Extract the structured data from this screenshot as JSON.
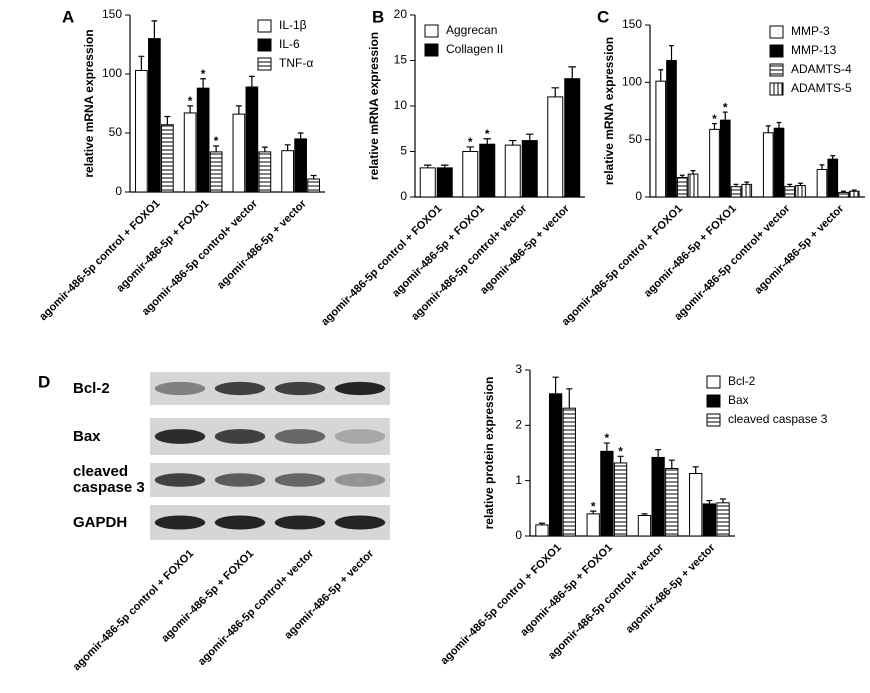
{
  "chart_data": [
    {
      "type": "bar",
      "panel": "A",
      "y_label": "relative mRNA expression",
      "categories": [
        "agomir-486-5p control + FOXO1",
        "agomir-486-5p + FOXO1",
        "agomir-486-5p control+ vector",
        "agomir-486-5p + vector"
      ],
      "ylim": [
        0,
        150
      ],
      "yticks": [
        0,
        50,
        100,
        150
      ],
      "series": [
        {
          "name": "IL-1β",
          "color": "#ffffff",
          "values": [
            103,
            67,
            66,
            35
          ],
          "errors": [
            12,
            6,
            7,
            5
          ],
          "stars": [
            null,
            "*",
            null,
            null
          ]
        },
        {
          "name": "IL-6",
          "color": "#000000",
          "values": [
            130,
            88,
            89,
            45
          ],
          "errors": [
            15,
            8,
            9,
            5
          ],
          "stars": [
            null,
            "*",
            null,
            null
          ]
        },
        {
          "name": "TNF-α",
          "color": "#ffffff",
          "hatch": "horizontal",
          "values": [
            57,
            34,
            34,
            11
          ],
          "errors": [
            7,
            5,
            4,
            3
          ],
          "stars": [
            null,
            "*",
            null,
            null
          ]
        }
      ]
    },
    {
      "type": "bar",
      "panel": "B",
      "y_label": "relative mRNA expression",
      "categories": [
        "agomir-486-5p control + FOXO1",
        "agomir-486-5p + FOXO1",
        "agomir-486-5p control+ vector",
        "agomir-486-5p + vector"
      ],
      "ylim": [
        0,
        20
      ],
      "yticks": [
        0,
        5,
        10,
        15,
        20
      ],
      "series": [
        {
          "name": "Aggrecan",
          "color": "#ffffff",
          "values": [
            3.2,
            5.0,
            5.7,
            11.0
          ],
          "errors": [
            0.3,
            0.5,
            0.5,
            1.0
          ],
          "stars": [
            null,
            "*",
            null,
            null
          ]
        },
        {
          "name": "Collagen II",
          "color": "#000000",
          "values": [
            3.2,
            5.8,
            6.2,
            13.0
          ],
          "errors": [
            0.3,
            0.6,
            0.7,
            1.3
          ],
          "stars": [
            null,
            "*",
            null,
            null
          ]
        }
      ]
    },
    {
      "type": "bar",
      "panel": "C",
      "y_label": "relative mRNA expression",
      "categories": [
        "agomir-486-5p control + FOXO1",
        "agomir-486-5p + FOXO1",
        "agomir-486-5p control+ vector",
        "agomir-486-5p + vector"
      ],
      "ylim": [
        0,
        150
      ],
      "yticks": [
        0,
        50,
        100,
        150
      ],
      "series": [
        {
          "name": "MMP-3",
          "color": "#ffffff",
          "values": [
            101,
            59,
            56,
            24
          ],
          "errors": [
            10,
            5,
            6,
            4
          ],
          "stars": [
            null,
            "*",
            null,
            null
          ]
        },
        {
          "name": "MMP-13",
          "color": "#000000",
          "values": [
            119,
            67,
            60,
            33
          ],
          "errors": [
            13,
            7,
            5,
            3
          ],
          "stars": [
            null,
            "*",
            null,
            null
          ]
        },
        {
          "name": "ADAMTS-4",
          "color": "#ffffff",
          "hatch": "horizontal",
          "values": [
            17,
            9,
            9,
            4
          ],
          "errors": [
            2,
            2,
            2,
            1
          ]
        },
        {
          "name": "ADAMTS-5",
          "color": "#ffffff",
          "hatch": "vertical",
          "values": [
            20,
            11,
            10,
            5
          ],
          "errors": [
            3,
            2,
            2,
            1
          ]
        }
      ]
    },
    {
      "type": "blot",
      "panel": "D",
      "rows": [
        "Bcl-2",
        "Bax",
        "cleaved caspase 3",
        "GAPDH"
      ],
      "categories": [
        "agomir-486-5p control + FOXO1",
        "agomir-486-5p + FOXO1",
        "agomir-486-5p control+ vector",
        "agomir-486-5p + vector"
      ]
    },
    {
      "type": "bar",
      "y_label": "relative protein expression",
      "categories": [
        "agomir-486-5p control + FOXO1",
        "agomir-486-5p + FOXO1",
        "agomir-486-5p control+ vector",
        "agomir-486-5p + vector"
      ],
      "ylim": [
        0,
        3
      ],
      "yticks": [
        0,
        1,
        2,
        3
      ],
      "series": [
        {
          "name": "Bcl-2",
          "color": "#ffffff",
          "values": [
            0.2,
            0.4,
            0.37,
            1.13
          ],
          "errors": [
            0.03,
            0.05,
            0.03,
            0.12
          ],
          "stars": [
            null,
            "*",
            null,
            null
          ]
        },
        {
          "name": "Bax",
          "color": "#000000",
          "values": [
            2.57,
            1.53,
            1.42,
            0.58
          ],
          "errors": [
            0.3,
            0.15,
            0.14,
            0.06
          ],
          "stars": [
            null,
            "*",
            null,
            null
          ]
        },
        {
          "name": "cleaved caspase 3",
          "color": "#ffffff",
          "hatch": "horizontal",
          "values": [
            2.31,
            1.32,
            1.22,
            0.6
          ],
          "errors": [
            0.35,
            0.12,
            0.15,
            0.07
          ],
          "stars": [
            null,
            "*",
            null,
            null
          ]
        }
      ]
    }
  ]
}
